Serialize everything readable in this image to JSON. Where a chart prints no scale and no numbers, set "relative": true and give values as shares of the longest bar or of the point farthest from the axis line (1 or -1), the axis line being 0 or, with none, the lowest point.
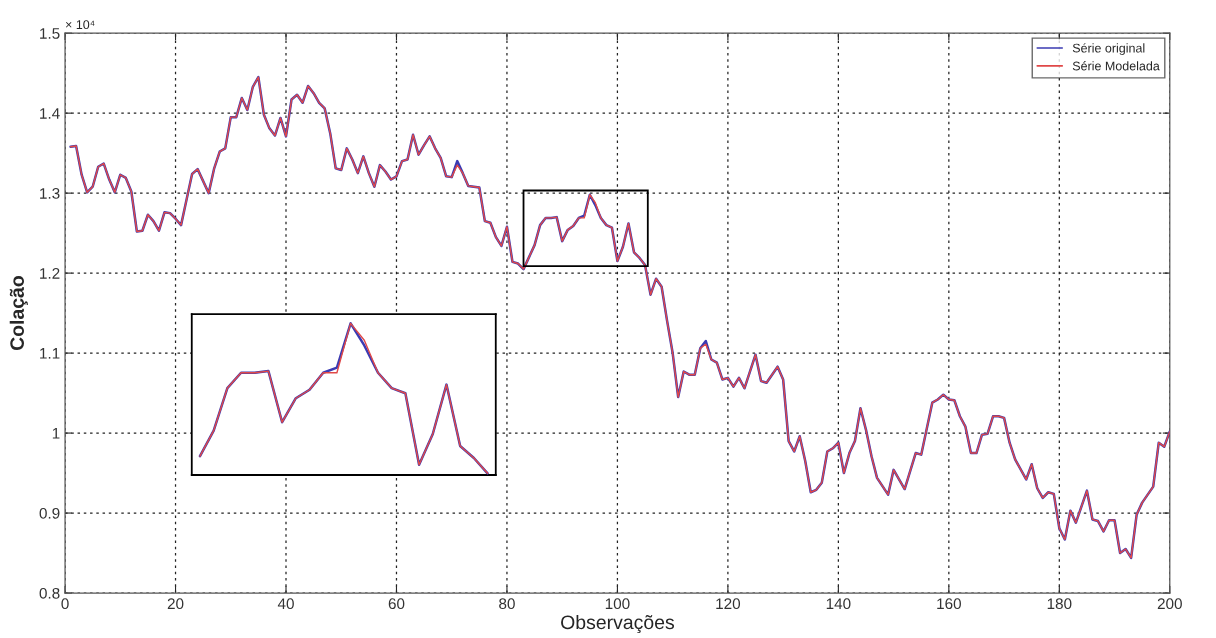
{
  "chart_data": [
    {
      "type": "line",
      "xlabel": "Observações",
      "ylabel": "Colação",
      "xlim": [
        0,
        200
      ],
      "xticks": [
        0,
        20,
        40,
        60,
        80,
        100,
        120,
        140,
        160,
        180,
        200
      ],
      "ylim": [
        0.8,
        1.5
      ],
      "yticks": [
        0.8,
        0.9,
        1,
        1.1,
        1.2,
        1.3,
        1.4,
        1.5
      ],
      "annotations": [
        "× 10⁴"
      ],
      "grid": true,
      "legend": "top right",
      "series": [
        {
          "name": "Série original",
          "color": "#3b3bb3",
          "x": [
            1,
            2,
            3,
            4,
            5,
            6,
            7,
            8,
            9,
            10,
            11,
            12,
            13,
            14,
            15,
            16,
            17,
            18,
            19,
            20,
            21,
            22,
            23,
            24,
            25,
            26,
            27,
            28,
            29,
            30,
            31,
            32,
            33,
            34,
            35,
            36,
            37,
            38,
            39,
            40,
            41,
            42,
            43,
            44,
            45,
            46,
            47,
            48,
            49,
            50,
            51,
            52,
            53,
            54,
            55,
            56,
            57,
            58,
            59,
            60,
            61,
            62,
            63,
            64,
            65,
            66,
            67,
            68,
            69,
            70,
            71,
            72,
            73,
            74,
            75,
            76,
            77,
            78,
            79,
            80,
            81,
            82,
            83,
            84,
            85,
            86,
            87,
            88,
            89,
            90,
            91,
            92,
            93,
            94,
            95,
            96,
            97,
            98,
            99,
            100,
            101,
            102,
            103,
            104,
            105,
            106,
            107,
            108,
            109,
            110,
            111,
            112,
            113,
            114,
            115,
            116,
            117,
            118,
            119,
            120,
            121,
            122,
            123,
            125,
            126,
            127,
            129,
            130,
            131,
            132,
            133,
            134,
            135,
            136,
            137,
            138,
            139,
            140,
            141,
            142,
            143,
            144,
            145,
            146,
            147,
            149,
            150,
            152,
            154,
            155,
            157,
            158,
            159,
            160,
            161,
            162,
            163,
            164,
            165,
            166,
            167,
            168,
            169,
            170,
            171,
            172,
            174,
            175,
            176,
            177,
            178,
            179,
            180,
            181,
            182,
            183,
            185,
            186,
            187,
            188,
            189,
            190,
            191,
            192,
            193,
            194,
            195,
            197,
            198,
            199,
            200
          ],
          "values": [
            1.358,
            1.359,
            1.323,
            1.301,
            1.308,
            1.333,
            1.337,
            1.317,
            1.301,
            1.323,
            1.319,
            1.302,
            1.252,
            1.253,
            1.273,
            1.265,
            1.253,
            1.276,
            1.275,
            1.268,
            1.26,
            1.292,
            1.324,
            1.33,
            1.315,
            1.3,
            1.331,
            1.352,
            1.356,
            1.395,
            1.395,
            1.419,
            1.404,
            1.433,
            1.445,
            1.398,
            1.381,
            1.372,
            1.394,
            1.371,
            1.417,
            1.423,
            1.413,
            1.434,
            1.425,
            1.413,
            1.406,
            1.375,
            1.331,
            1.329,
            1.356,
            1.342,
            1.325,
            1.346,
            1.325,
            1.308,
            1.335,
            1.327,
            1.317,
            1.321,
            1.34,
            1.342,
            1.373,
            1.348,
            1.36,
            1.371,
            1.356,
            1.344,
            1.321,
            1.32,
            1.34,
            1.325,
            1.309,
            1.308,
            1.307,
            1.265,
            1.263,
            1.245,
            1.234,
            1.258,
            1.214,
            1.212,
            1.205,
            1.22,
            1.235,
            1.26,
            1.269,
            1.269,
            1.27,
            1.24,
            1.254,
            1.259,
            1.269,
            1.272,
            1.298,
            1.285,
            1.269,
            1.26,
            1.257,
            1.215,
            1.233,
            1.262,
            1.226,
            1.219,
            1.21,
            1.173,
            1.193,
            1.183,
            1.14,
            1.1,
            1.045,
            1.077,
            1.073,
            1.073,
            1.106,
            1.115,
            1.092,
            1.088,
            1.067,
            1.069,
            1.058,
            1.069,
            1.056,
            1.098,
            1.065,
            1.063,
            1.083,
            1.067,
            0.99,
            0.977,
            0.996,
            0.965,
            0.926,
            0.929,
            0.938,
            0.977,
            0.981,
            0.988,
            0.95,
            0.975,
            0.99,
            1.031,
            1.004,
            0.971,
            0.944,
            0.923,
            0.954,
            0.93,
            0.975,
            0.973,
            1.038,
            1.042,
            1.048,
            1.042,
            1.041,
            1.021,
            1.008,
            0.975,
            0.975,
            0.998,
            0.999,
            1.021,
            1.021,
            1.019,
            0.988,
            0.967,
            0.942,
            0.961,
            0.931,
            0.919,
            0.926,
            0.924,
            0.881,
            0.867,
            0.903,
            0.888,
            0.928,
            0.892,
            0.89,
            0.877,
            0.891,
            0.891,
            0.85,
            0.855,
            0.844,
            0.898,
            0.913,
            0.933,
            0.988,
            0.983,
            1.002
          ]
        },
        {
          "name": "Série Modelada",
          "color": "#e04848",
          "x": [
            1,
            2,
            3,
            4,
            5,
            6,
            7,
            8,
            9,
            10,
            11,
            12,
            13,
            14,
            15,
            16,
            17,
            18,
            19,
            20,
            21,
            22,
            23,
            24,
            25,
            26,
            27,
            28,
            29,
            30,
            31,
            32,
            33,
            34,
            35,
            36,
            37,
            38,
            39,
            40,
            41,
            42,
            43,
            44,
            45,
            46,
            47,
            48,
            49,
            50,
            51,
            52,
            53,
            54,
            55,
            56,
            57,
            58,
            59,
            60,
            61,
            62,
            63,
            64,
            65,
            66,
            67,
            68,
            69,
            70,
            71,
            72,
            73,
            74,
            75,
            76,
            77,
            78,
            79,
            80,
            81,
            82,
            83,
            84,
            85,
            86,
            87,
            88,
            89,
            90,
            91,
            92,
            93,
            94,
            95,
            96,
            97,
            98,
            99,
            100,
            101,
            102,
            103,
            104,
            105,
            106,
            107,
            108,
            109,
            110,
            111,
            112,
            113,
            114,
            115,
            116,
            117,
            118,
            119,
            120,
            121,
            122,
            123,
            125,
            126,
            127,
            129,
            130,
            131,
            132,
            133,
            134,
            135,
            136,
            137,
            138,
            139,
            140,
            141,
            142,
            143,
            144,
            145,
            146,
            147,
            149,
            150,
            152,
            154,
            155,
            157,
            158,
            159,
            160,
            161,
            162,
            163,
            164,
            165,
            166,
            167,
            168,
            169,
            170,
            171,
            172,
            174,
            175,
            176,
            177,
            178,
            179,
            180,
            181,
            182,
            183,
            185,
            186,
            187,
            188,
            189,
            190,
            191,
            192,
            193,
            194,
            195,
            197,
            198,
            199,
            200
          ],
          "values": [
            1.358,
            1.359,
            1.323,
            1.301,
            1.308,
            1.333,
            1.337,
            1.317,
            1.301,
            1.323,
            1.319,
            1.302,
            1.252,
            1.253,
            1.273,
            1.265,
            1.253,
            1.276,
            1.275,
            1.268,
            1.26,
            1.292,
            1.324,
            1.33,
            1.315,
            1.3,
            1.331,
            1.352,
            1.356,
            1.395,
            1.395,
            1.419,
            1.404,
            1.433,
            1.445,
            1.398,
            1.381,
            1.372,
            1.394,
            1.371,
            1.417,
            1.423,
            1.413,
            1.434,
            1.425,
            1.413,
            1.406,
            1.375,
            1.331,
            1.329,
            1.356,
            1.342,
            1.325,
            1.346,
            1.325,
            1.308,
            1.335,
            1.327,
            1.317,
            1.321,
            1.34,
            1.342,
            1.373,
            1.348,
            1.36,
            1.371,
            1.356,
            1.344,
            1.321,
            1.32,
            1.335,
            1.325,
            1.309,
            1.308,
            1.307,
            1.265,
            1.263,
            1.245,
            1.234,
            1.258,
            1.214,
            1.212,
            1.205,
            1.22,
            1.235,
            1.26,
            1.269,
            1.269,
            1.27,
            1.24,
            1.254,
            1.259,
            1.269,
            1.269,
            1.298,
            1.288,
            1.269,
            1.26,
            1.257,
            1.215,
            1.233,
            1.262,
            1.226,
            1.219,
            1.21,
            1.173,
            1.193,
            1.183,
            1.14,
            1.1,
            1.045,
            1.077,
            1.073,
            1.073,
            1.106,
            1.111,
            1.092,
            1.088,
            1.067,
            1.069,
            1.058,
            1.069,
            1.056,
            1.098,
            1.065,
            1.063,
            1.083,
            1.067,
            0.99,
            0.977,
            0.996,
            0.965,
            0.926,
            0.929,
            0.938,
            0.977,
            0.981,
            0.988,
            0.95,
            0.975,
            0.99,
            1.031,
            1.004,
            0.971,
            0.944,
            0.923,
            0.954,
            0.93,
            0.975,
            0.973,
            1.038,
            1.042,
            1.048,
            1.042,
            1.041,
            1.021,
            1.008,
            0.975,
            0.975,
            0.998,
            0.999,
            1.021,
            1.021,
            1.019,
            0.988,
            0.967,
            0.942,
            0.961,
            0.931,
            0.919,
            0.926,
            0.924,
            0.881,
            0.867,
            0.903,
            0.888,
            0.928,
            0.892,
            0.89,
            0.877,
            0.891,
            0.891,
            0.85,
            0.855,
            0.844,
            0.898,
            0.913,
            0.933,
            0.988,
            0.983,
            1.002
          ]
        }
      ]
    },
    {
      "type": "line",
      "relative": true,
      "categories": [
        null,
        null,
        null,
        null,
        null,
        null,
        null,
        null,
        null,
        null,
        null,
        null,
        null,
        null,
        null,
        null,
        null,
        null,
        null,
        null,
        null,
        null
      ],
      "series": [
        {
          "color": "#3b3bb3",
          "values": [
            0.124,
            0.292,
            0.573,
            0.674,
            0.674,
            0.685,
            0.348,
            0.506,
            0.562,
            0.674,
            0.708,
            1,
            0.854,
            0.674,
            0.573,
            0.539,
            0.067,
            0.27,
            0.596,
            0.191,
            0.112,
            0.011
          ]
        },
        {
          "color": "#e04848",
          "values": [
            0.124,
            0.292,
            0.573,
            0.674,
            0.674,
            0.685,
            0.348,
            0.506,
            0.562,
            0.674,
            0.674,
            1,
            0.888,
            0.674,
            0.573,
            0.539,
            0.067,
            0.27,
            0.596,
            0.191,
            0.112,
            0.011
          ]
        }
      ]
    }
  ]
}
